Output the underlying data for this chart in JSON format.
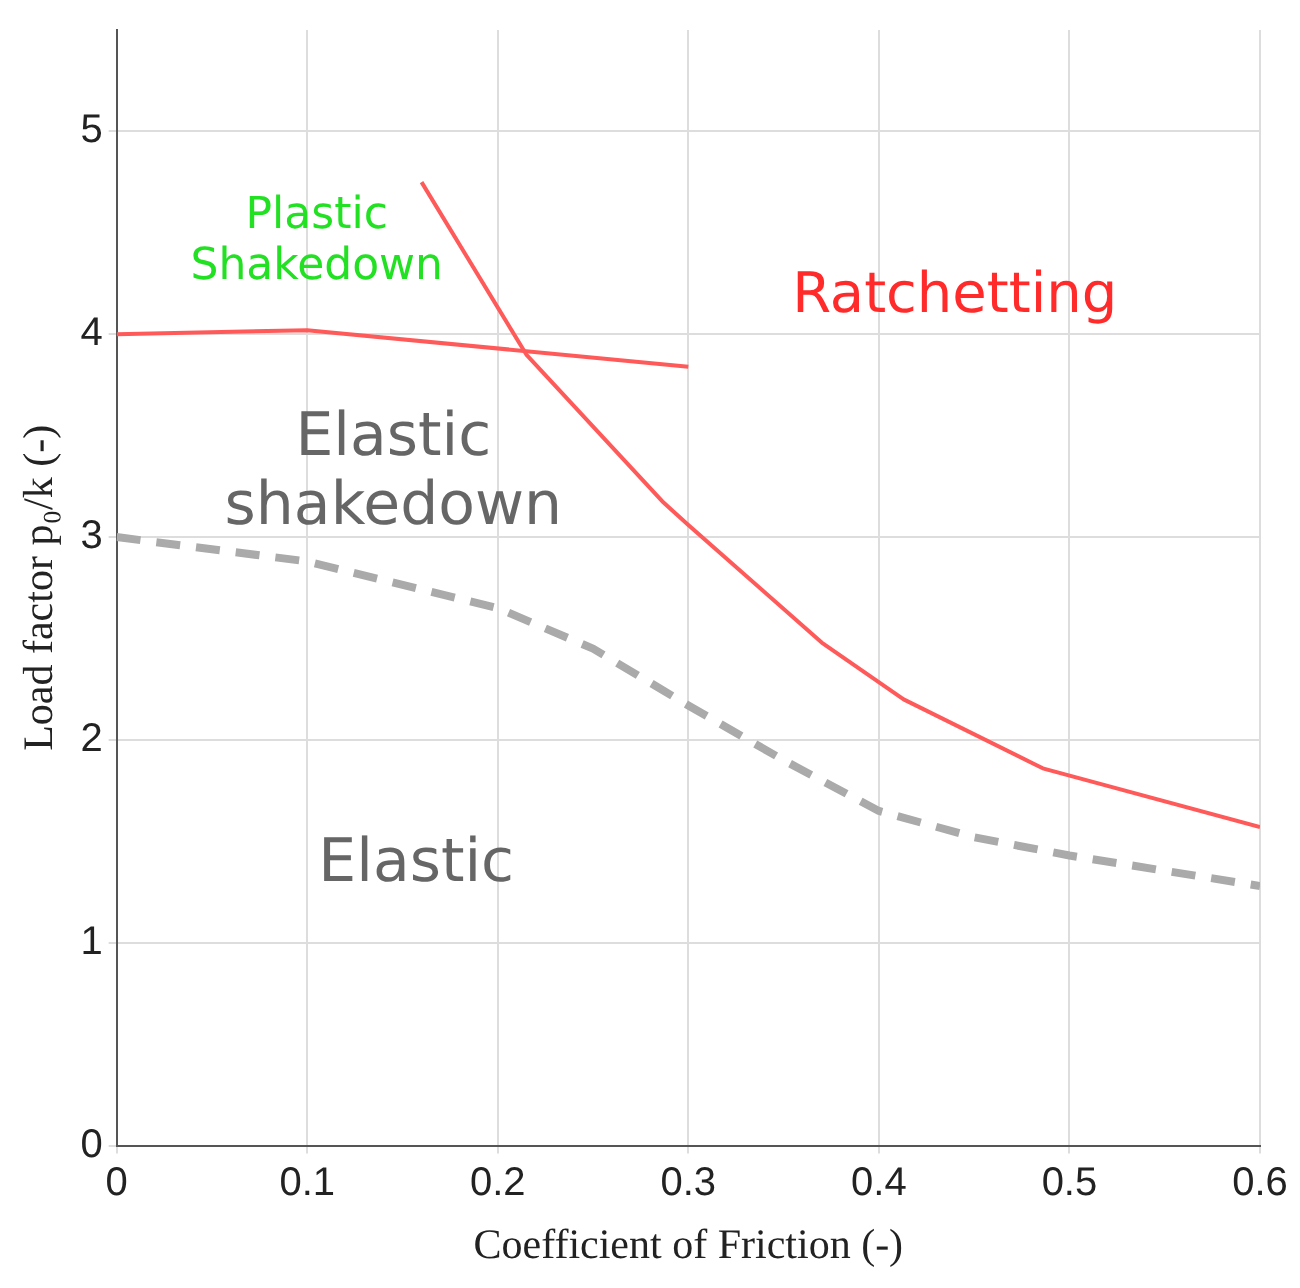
{
  "chart_data": {
    "type": "line",
    "xlabel": "Coefficient of Friction (-)",
    "ylabel": "Load factor p₀/k (-)",
    "xlim": [
      0,
      0.6
    ],
    "xticks": [
      0,
      0.1,
      0.2,
      0.3,
      0.4,
      0.5,
      0.6
    ],
    "ylim": [
      0,
      5.5
    ],
    "yticks": [
      0,
      1,
      2,
      3,
      4,
      5
    ],
    "grid": true,
    "legend": false,
    "marker": "none",
    "series": [
      {
        "color": "#ff5a5a",
        "line_style": "solid",
        "x": [
          0,
          0.1,
          0.3
        ],
        "values": [
          4.0,
          4.02,
          3.84
        ]
      },
      {
        "color": "#ff5a5a",
        "line_style": "solid",
        "x": [
          0.16,
          0.215,
          0.287,
          0.3,
          0.37,
          0.413,
          0.486,
          0.6
        ],
        "values": [
          4.75,
          3.9,
          3.17,
          3.06,
          2.48,
          2.2,
          1.86,
          1.57
        ]
      },
      {
        "color": "#aaaaaa",
        "line_style": "dashed",
        "x": [
          0,
          0.1,
          0.2,
          0.25,
          0.3,
          0.35,
          0.4,
          0.45,
          0.5,
          0.6
        ],
        "values": [
          3.0,
          2.88,
          2.65,
          2.45,
          2.17,
          1.9,
          1.65,
          1.52,
          1.43,
          1.28
        ]
      }
    ],
    "annotations": [
      "Plastic\nShakedown",
      "Ratchetting",
      "Elastic\nshakedown",
      "Elastic"
    ]
  }
}
